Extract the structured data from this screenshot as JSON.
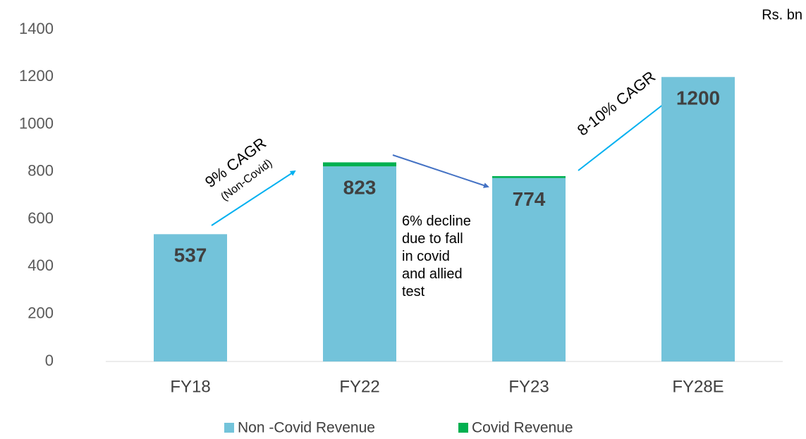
{
  "chart_data": {
    "type": "stacked_bar",
    "unit_label": "Rs. bn",
    "categories": [
      "FY18",
      "FY22",
      "FY23",
      "FY28E"
    ],
    "series": [
      {
        "name": "Non -Covid Revenue",
        "color": "#73c3da",
        "values": [
          537,
          823,
          774,
          1200
        ]
      },
      {
        "name": "Covid Revenue",
        "color": "#00b050",
        "values": [
          0,
          17,
          8,
          0
        ]
      }
    ],
    "ylim": [
      0,
      1400
    ],
    "yticks": [
      0,
      200,
      400,
      600,
      800,
      1000,
      1200,
      1400
    ],
    "legend": "bottom",
    "annotations": {
      "cagr_1": "9% CAGR",
      "cagr_1_note": "(Non-Covid)",
      "decline": "6% decline due to fall in covid and allied test",
      "cagr_2": "8-10% CAGR"
    }
  }
}
